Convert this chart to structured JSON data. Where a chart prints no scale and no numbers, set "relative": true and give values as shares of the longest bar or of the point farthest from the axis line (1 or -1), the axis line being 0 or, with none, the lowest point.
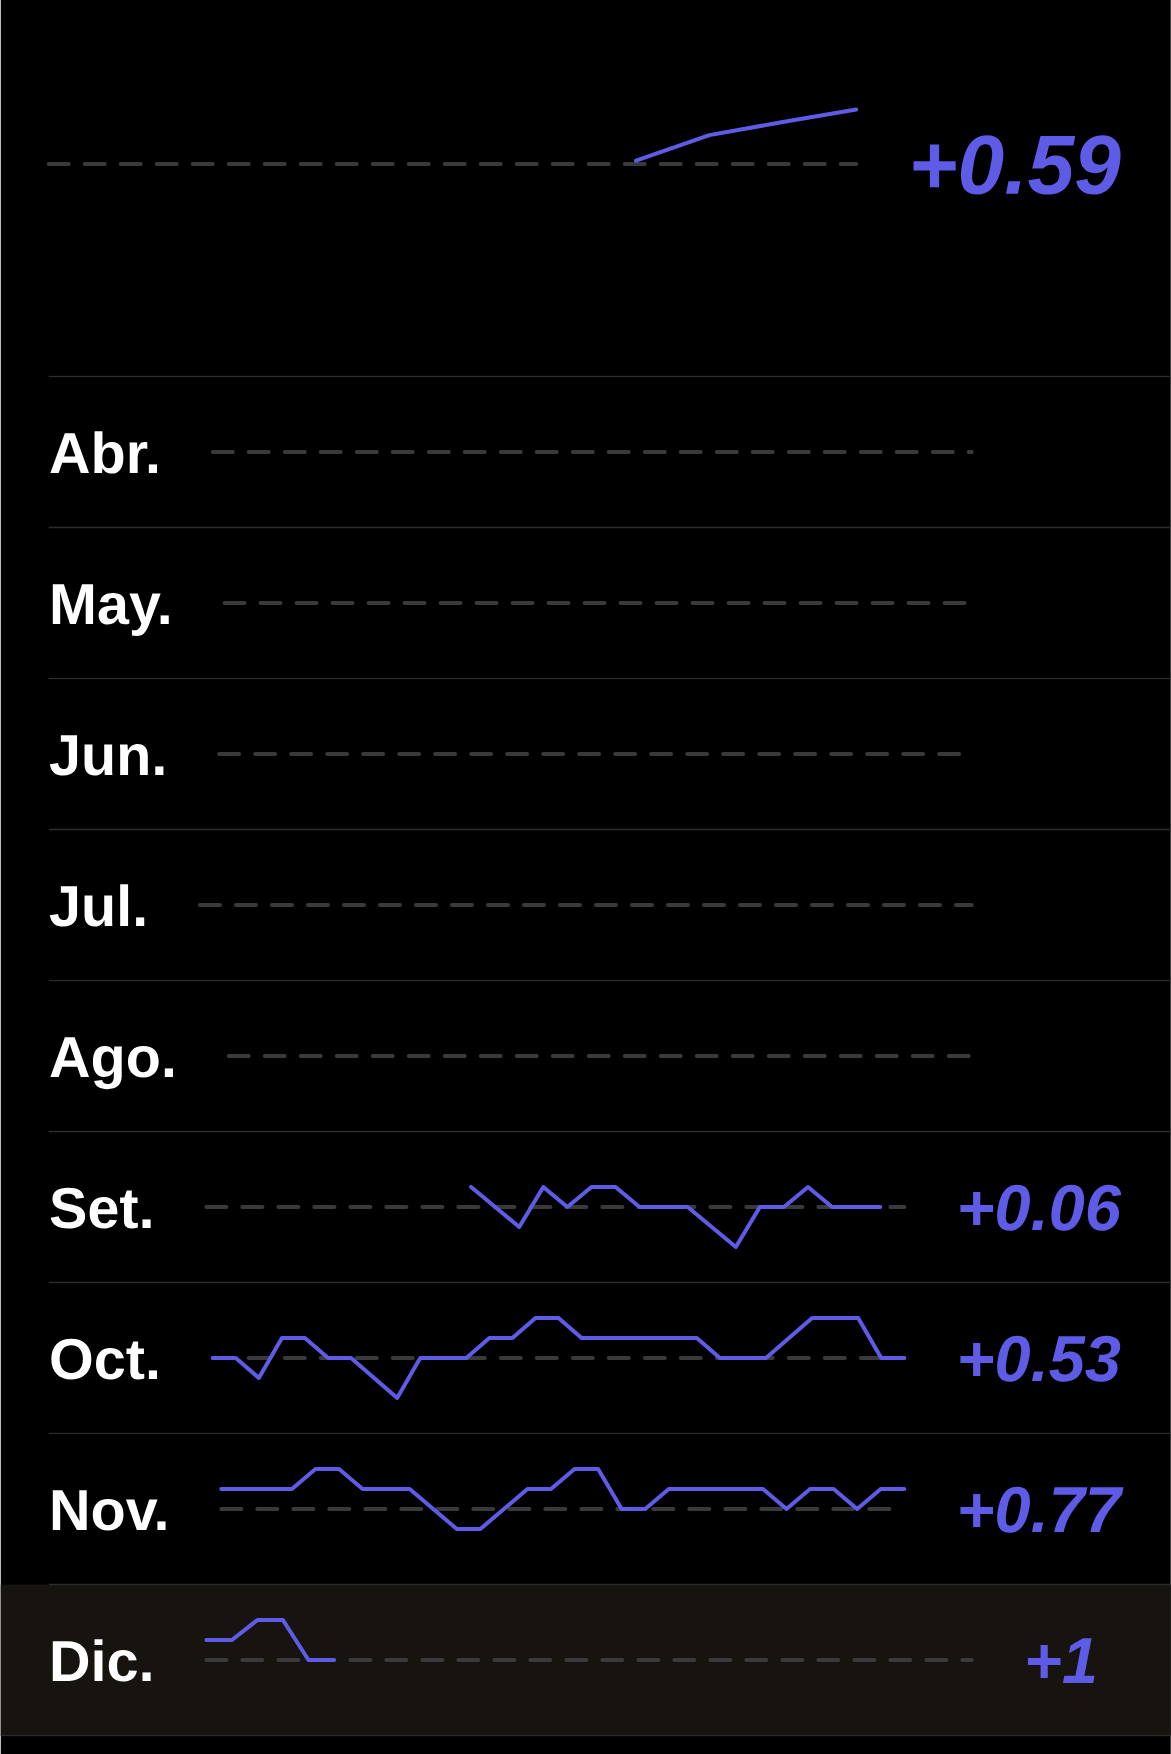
{
  "chart_data": [
    {
      "type": "line",
      "relative": true,
      "categories": [
        null,
        null,
        null,
        null,
        null,
        null,
        null,
        null,
        null,
        null,
        null,
        null
      ],
      "values": [
        null,
        null,
        null,
        null,
        null,
        null,
        null,
        null,
        0.06,
        0.53,
        0.77,
        1
      ],
      "color": "#5e5ce6",
      "annotations": [
        "+0.59"
      ],
      "ref_lines": [
        {
          "axis": "y",
          "value": 0,
          "color": "#3a3a3c",
          "line_style": "dashed"
        }
      ]
    },
    {
      "type": "other",
      "title": "Abr."
    },
    {
      "type": "other",
      "title": "May."
    },
    {
      "type": "other",
      "title": "Jun."
    },
    {
      "type": "other",
      "title": "Jul."
    },
    {
      "type": "other",
      "title": "Ago."
    },
    {
      "type": "line",
      "relative": true,
      "title": "Set.",
      "categories": [
        null,
        null,
        null,
        null,
        null,
        null,
        null,
        null,
        null,
        null,
        null,
        null,
        null,
        null,
        null,
        null,
        null,
        null,
        null,
        null,
        null,
        null,
        null,
        null,
        null,
        null,
        null,
        null,
        null,
        null
      ],
      "values": [
        null,
        null,
        null,
        null,
        null,
        null,
        null,
        null,
        null,
        null,
        null,
        0.5,
        0,
        -0.5,
        0.5,
        0,
        0.5,
        0.5,
        0,
        0,
        0,
        -0.5,
        -1,
        0,
        0,
        0.5,
        0,
        0,
        0,
        null
      ],
      "color": "#5e5ce6",
      "annotations": [
        "+0.06"
      ],
      "ref_lines": [
        {
          "axis": "y",
          "value": 0,
          "color": "#3a3a3c",
          "line_style": "dashed"
        }
      ]
    },
    {
      "type": "line",
      "relative": true,
      "title": "Oct.",
      "categories": [
        null,
        null,
        null,
        null,
        null,
        null,
        null,
        null,
        null,
        null,
        null,
        null,
        null,
        null,
        null,
        null,
        null,
        null,
        null,
        null,
        null,
        null,
        null,
        null,
        null,
        null,
        null,
        null,
        null,
        null,
        null
      ],
      "values": [
        0,
        0,
        -0.5,
        0.5,
        0.5,
        0,
        0,
        -0.5,
        -1,
        0,
        0,
        0,
        0.5,
        0.5,
        1,
        1,
        0.5,
        0.5,
        0.5,
        0.5,
        0.5,
        0.5,
        0,
        0,
        0,
        0.5,
        1,
        1,
        1,
        0,
        0
      ],
      "color": "#5e5ce6",
      "annotations": [
        "+0.53"
      ],
      "ref_lines": [
        {
          "axis": "y",
          "value": 0,
          "color": "#3a3a3c",
          "line_style": "dashed"
        }
      ]
    },
    {
      "type": "line",
      "relative": true,
      "title": "Nov.",
      "categories": [
        null,
        null,
        null,
        null,
        null,
        null,
        null,
        null,
        null,
        null,
        null,
        null,
        null,
        null,
        null,
        null,
        null,
        null,
        null,
        null,
        null,
        null,
        null,
        null,
        null,
        null,
        null,
        null,
        null,
        null
      ],
      "values": [
        0.5,
        0.5,
        0.5,
        0.5,
        1,
        1,
        0.5,
        0.5,
        0.5,
        0,
        -0.5,
        -0.5,
        0,
        0.5,
        0.5,
        1,
        1,
        0,
        0,
        0.5,
        0.5,
        0.5,
        0.5,
        0.5,
        0,
        0.5,
        0.5,
        0,
        0.5,
        0.5
      ],
      "color": "#5e5ce6",
      "annotations": [
        "+0.77"
      ],
      "ref_lines": [
        {
          "axis": "y",
          "value": 0,
          "color": "#3a3a3c",
          "line_style": "dashed"
        }
      ]
    },
    {
      "type": "line",
      "relative": true,
      "title": "Dic.",
      "categories": [
        null,
        null,
        null,
        null,
        null,
        null,
        null,
        null,
        null,
        null,
        null,
        null,
        null,
        null,
        null,
        null,
        null,
        null,
        null,
        null,
        null,
        null,
        null,
        null,
        null,
        null,
        null,
        null,
        null,
        null,
        null
      ],
      "values": [
        0.5,
        0.5,
        1,
        1,
        0,
        0,
        null,
        null,
        null,
        null,
        null,
        null,
        null,
        null,
        null,
        null,
        null,
        null,
        null,
        null,
        null,
        null,
        null,
        null,
        null,
        null,
        null,
        null,
        null,
        null,
        null
      ],
      "color": "#5e5ce6",
      "annotations": [
        "+1"
      ],
      "ref_lines": [
        {
          "axis": "y",
          "value": 0,
          "color": "#3a3a3c",
          "line_style": "dashed"
        }
      ]
    }
  ]
}
